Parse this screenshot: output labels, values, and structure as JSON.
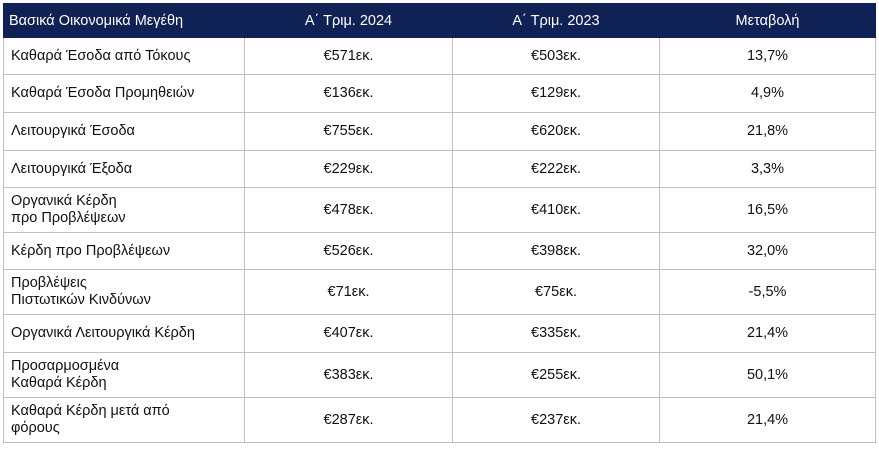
{
  "table": {
    "headers": [
      "Βασικά Οικονομικά Μεγέθη",
      "Α΄ Τριμ. 2024",
      "Α΄ Τριμ. 2023",
      "Μεταβολή"
    ],
    "rows": [
      {
        "label": "Καθαρά Έσοδα από Τόκους",
        "q1_2024": "€571εκ.",
        "q1_2023": "€503εκ.",
        "change": "13,7%"
      },
      {
        "label": "Καθαρά Έσοδα Προμηθειών",
        "q1_2024": "€136εκ.",
        "q1_2023": "€129εκ.",
        "change": "4,9%"
      },
      {
        "label": "Λειτουργικά Έσοδα",
        "q1_2024": "€755εκ.",
        "q1_2023": "€620εκ.",
        "change": "21,8%"
      },
      {
        "label": "Λειτουργικά Έξοδα",
        "q1_2024": "€229εκ.",
        "q1_2023": "€222εκ.",
        "change": "3,3%"
      },
      {
        "label": "Οργανικά Κέρδη\nπρο Προβλέψεων",
        "q1_2024": "€478εκ.",
        "q1_2023": "€410εκ.",
        "change": "16,5%"
      },
      {
        "label": "Κέρδη προ Προβλέψεων",
        "q1_2024": "€526εκ.",
        "q1_2023": "€398εκ.",
        "change": "32,0%"
      },
      {
        "label": "Προβλέψεις\nΠιστωτικών Κινδύνων",
        "q1_2024": "€71εκ.",
        "q1_2023": "€75εκ.",
        "change": "-5,5%"
      },
      {
        "label": "Οργανικά Λειτουργικά Κέρδη",
        "q1_2024": "€407εκ.",
        "q1_2023": "€335εκ.",
        "change": "21,4%"
      },
      {
        "label": "Προσαρμοσμένα\nΚαθαρά Κέρδη",
        "q1_2024": "€383εκ.",
        "q1_2023": "€255εκ.",
        "change": "50,1%"
      },
      {
        "label": "Καθαρά Κέρδη μετά από\nφόρους",
        "q1_2024": "€287εκ.",
        "q1_2023": "€237εκ.",
        "change": "21,4%"
      }
    ]
  },
  "colors": {
    "header_bg": "#102255",
    "header_text": "#ffffff",
    "grid_line": "#bfbfbf"
  }
}
